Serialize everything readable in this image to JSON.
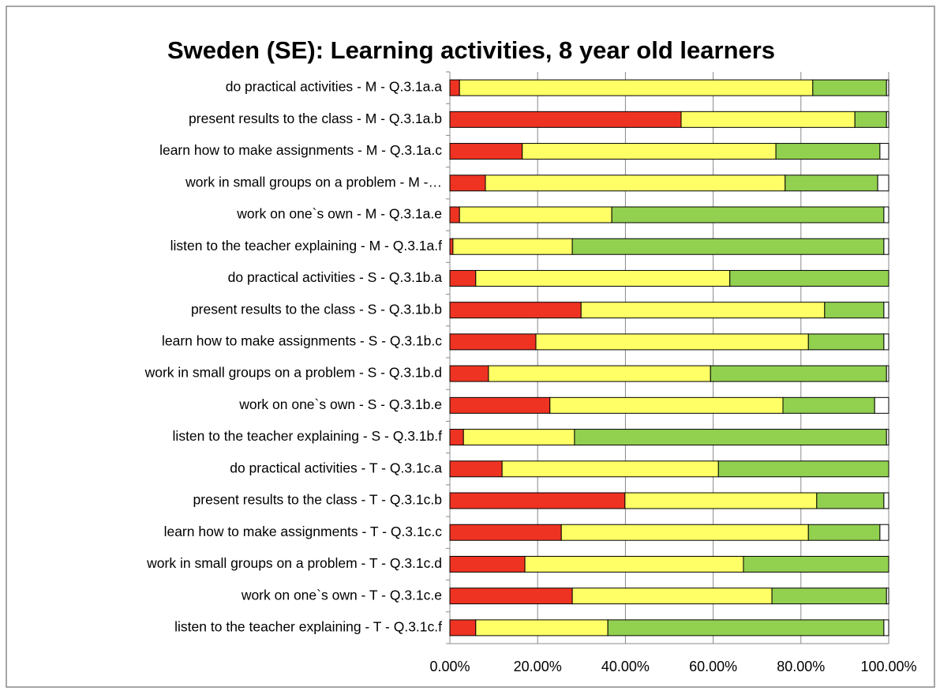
{
  "chart_data": {
    "type": "bar",
    "orientation": "horizontal",
    "stacked": true,
    "title": "Sweden (SE): Learning activities, 8 year old learners",
    "categories": [
      "do practical activities - M - Q.3.1a.a",
      "present results to the class - M - Q.3.1a.b",
      "learn how to make assignments - M - Q.3.1a.c",
      "work in small groups on a problem - M -…",
      "work on one`s own - M - Q.3.1a.e",
      "listen to the teacher explaining - M - Q.3.1a.f",
      "do practical activities - S - Q.3.1b.a",
      "present results to the class - S - Q.3.1b.b",
      "learn how to make assignments - S - Q.3.1b.c",
      "work in small groups on a problem - S - Q.3.1b.d",
      "work on one`s own - S - Q.3.1b.e",
      "listen to the teacher explaining - S - Q.3.1b.f",
      "do practical activities - T - Q.3.1c.a",
      "present results to the class - T - Q.3.1c.b",
      "learn how to make assignments - T - Q.3.1c.c",
      "work in small groups on a problem - T - Q.3.1c.d",
      "work on one`s own - T - Q.3.1c.e",
      "listen to the teacher explaining - T - Q.3.1c.f"
    ],
    "series": [
      {
        "color": "#ee3322",
        "values": [
          2.2,
          52.7,
          16.5,
          8.1,
          2.2,
          0.7,
          5.9,
          29.9,
          19.6,
          8.8,
          22.8,
          3.1,
          11.9,
          39.9,
          25.4,
          17.1,
          27.9,
          5.9
        ]
      },
      {
        "color": "#ffff66",
        "values": [
          80.5,
          39.6,
          57.8,
          68.3,
          34.7,
          27.2,
          57.9,
          55.5,
          62.1,
          50.6,
          53.1,
          25.3,
          49.3,
          43.7,
          56.3,
          49.8,
          45.5,
          30.1
        ]
      },
      {
        "color": "#92d050",
        "values": [
          16.8,
          7.2,
          23.7,
          21.1,
          62.0,
          71.0,
          36.2,
          13.5,
          17.2,
          40.1,
          20.9,
          71.1,
          38.8,
          15.3,
          16.3,
          33.1,
          26.1,
          62.9
        ]
      },
      {
        "color": "#ffffff",
        "values": [
          0.5,
          0.5,
          2.0,
          2.5,
          1.1,
          1.1,
          0,
          1.1,
          1.1,
          0.5,
          3.2,
          0.5,
          0,
          1.1,
          2.0,
          0,
          0.5,
          1.1
        ]
      }
    ],
    "xlim": [
      0,
      100
    ],
    "xticks": [
      {
        "value": 0,
        "label": "0.00%"
      },
      {
        "value": 20,
        "label": "20.00%"
      },
      {
        "value": 40,
        "label": "40.00%"
      },
      {
        "value": 60,
        "label": "60.00%"
      },
      {
        "value": 80,
        "label": "80.00%"
      },
      {
        "value": 100,
        "label": "100.00%"
      }
    ],
    "grid": true
  }
}
